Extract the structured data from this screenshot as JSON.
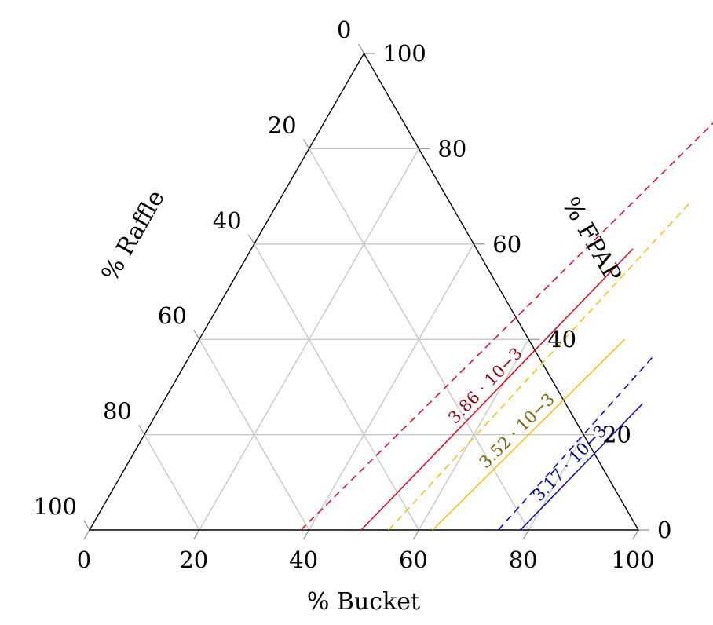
{
  "chart_data": {
    "type": "ternary-contour",
    "axes": {
      "bottom": {
        "label": "% Bucket",
        "ticks": [
          "0",
          "20",
          "40",
          "60",
          "80",
          "100"
        ]
      },
      "right": {
        "label": "% FPAP",
        "ticks": [
          "0",
          "20",
          "40",
          "60",
          "80",
          "100"
        ]
      },
      "left": {
        "label": "% Raffle",
        "ticks": [
          "0",
          "20",
          "40",
          "60",
          "80",
          "100"
        ]
      }
    },
    "grid": true,
    "series": [
      {
        "name": "3.86 · 10⁻³",
        "label": "3.86 · 10−3",
        "color": "#e8001c",
        "label_color": "#8b0010",
        "solid": [
          [
            49.5,
            0
          ],
          [
            69.5,
            59
          ]
        ],
        "dashed": [
          [
            38.5,
            0
          ],
          [
            74.0,
            93.5
          ]
        ]
      },
      {
        "name": "3.52 · 10⁻³",
        "label": "3.52 · 10−3",
        "color": "#f5c000",
        "label_color": "#7a6500",
        "solid": [
          [
            62.5,
            0
          ],
          [
            77.5,
            40
          ]
        ],
        "dashed": [
          [
            54.5,
            0
          ],
          [
            75.0,
            68.5
          ]
        ]
      },
      {
        "name": "3.17 · 10⁻³",
        "label": "3.17 · 10−3",
        "color": "#0000d0",
        "label_color": "#00008b",
        "solid": [
          [
            78.5,
            0
          ],
          [
            87.5,
            26.5
          ]
        ],
        "dashed": [
          [
            74.5,
            0
          ],
          [
            84.5,
            36.5
          ]
        ]
      }
    ]
  }
}
